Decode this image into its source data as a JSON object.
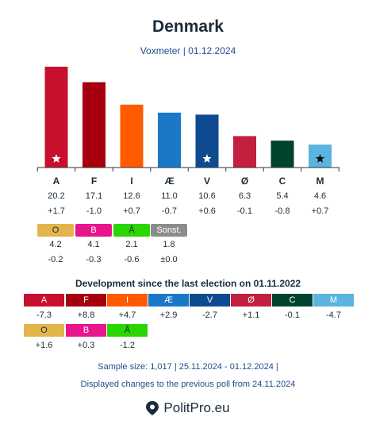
{
  "header": {
    "title": "Denmark",
    "subtitle": "Voxmeter | 01.12.2024"
  },
  "chart_data": {
    "type": "bar",
    "categories": [
      "A",
      "F",
      "I",
      "Æ",
      "V",
      "Ø",
      "C",
      "M"
    ],
    "values": [
      20.2,
      17.1,
      12.6,
      11.0,
      10.6,
      6.3,
      5.4,
      4.6
    ],
    "changes": [
      "+1.7",
      "-1.0",
      "+0.7",
      "-0.7",
      "+0.6",
      "-0.1",
      "-0.8",
      "+0.7"
    ],
    "value_labels": [
      "20.2",
      "17.1",
      "12.6",
      "11.0",
      "10.6",
      "6.3",
      "5.4",
      "4.6"
    ],
    "colors": [
      "#c8102e",
      "#a6000e",
      "#ff5a00",
      "#1a78c8",
      "#0d4a8f",
      "#c2203e",
      "#004430",
      "#5ab4e0"
    ],
    "stars": [
      "A",
      "V",
      "M"
    ],
    "star_colors": {
      "A": "#ffffff",
      "V": "#ffffff",
      "M": "#111111"
    },
    "ylim": [
      0,
      21
    ]
  },
  "small_parties": [
    {
      "label": "O",
      "value": "4.2",
      "change": "-0.2",
      "color": "#e2b54b"
    },
    {
      "label": "B",
      "value": "4.1",
      "change": "-0.3",
      "color": "#e8158d"
    },
    {
      "label": "Å",
      "value": "2.1",
      "change": "-0.6",
      "color": "#2ad600"
    },
    {
      "label": "Sonst.",
      "value": "1.8",
      "change": "±0.0",
      "color": "#8c8c8c"
    }
  ],
  "development": {
    "title": "Development since the last election on 01.11.2022",
    "row1": [
      {
        "label": "A",
        "change": "-7.3",
        "color": "#c8102e"
      },
      {
        "label": "F",
        "change": "+8.8",
        "color": "#a6000e"
      },
      {
        "label": "I",
        "change": "+4.7",
        "color": "#ff5a00"
      },
      {
        "label": "Æ",
        "change": "+2.9",
        "color": "#1a78c8"
      },
      {
        "label": "V",
        "change": "-2.7",
        "color": "#0d4a8f"
      },
      {
        "label": "Ø",
        "change": "+1.1",
        "color": "#c2203e"
      },
      {
        "label": "C",
        "change": "-0.1",
        "color": "#004430"
      },
      {
        "label": "M",
        "change": "-4.7",
        "color": "#5ab4e0"
      }
    ],
    "row2": [
      {
        "label": "O",
        "change": "+1.6",
        "color": "#e2b54b"
      },
      {
        "label": "B",
        "change": "+0.3",
        "color": "#e8158d"
      },
      {
        "label": "Å",
        "change": "-1.2",
        "color": "#2ad600"
      }
    ]
  },
  "footer": {
    "line1": "Sample size: 1,017 | 25.11.2024 - 01.12.2024 |",
    "line2": "Displayed changes to the previous poll from 24.11.2024",
    "brand": "PolitPro.eu"
  }
}
